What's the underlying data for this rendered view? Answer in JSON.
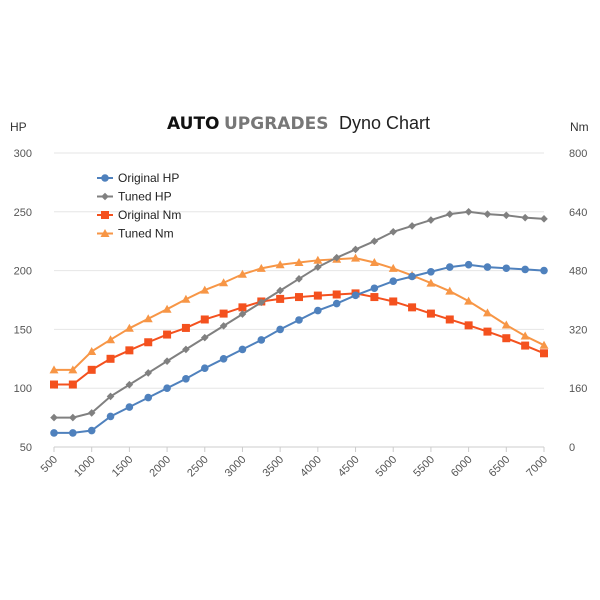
{
  "chart_data": {
    "type": "line",
    "title_brand_primary": "AUTO",
    "title_brand_secondary": "UPGRADES",
    "title": "Dyno Chart",
    "left_axis_label": "HP",
    "right_axis_label": "Nm",
    "x": [
      500,
      750,
      1000,
      1250,
      1500,
      1750,
      2000,
      2250,
      2500,
      2750,
      3000,
      3250,
      3500,
      3750,
      4000,
      4250,
      4500,
      4750,
      5000,
      5250,
      5500,
      5750,
      6000,
      6250,
      6500,
      6750,
      7000
    ],
    "x_tick_labels": [
      "500",
      "1000",
      "1500",
      "2000",
      "2500",
      "3000",
      "3500",
      "4000",
      "4500",
      "5000",
      "5500",
      "6000",
      "6500",
      "7000"
    ],
    "x_ticks": [
      500,
      1000,
      1500,
      2000,
      2500,
      3000,
      3500,
      4000,
      4500,
      5000,
      5500,
      6000,
      6500,
      7000
    ],
    "xlim": [
      500,
      7000
    ],
    "left_ylim": [
      50,
      300
    ],
    "left_ticks": [
      50,
      100,
      150,
      200,
      250,
      300
    ],
    "right_ylim": [
      0,
      800
    ],
    "right_ticks": [
      0,
      160,
      320,
      480,
      640,
      800
    ],
    "grid": true,
    "legend_position": "top-left",
    "series": [
      {
        "name": "Original HP",
        "axis": "left",
        "color": "#4f81bd",
        "marker": "circle",
        "values": [
          62,
          62,
          64,
          76,
          84,
          92,
          100,
          108,
          117,
          125,
          133,
          141,
          150,
          158,
          166,
          172,
          179,
          185,
          191,
          195,
          199,
          203,
          205,
          203,
          202,
          201,
          200
        ]
      },
      {
        "name": "Tuned HP",
        "axis": "left",
        "color": "#808080",
        "marker": "diamond",
        "values": [
          75,
          75,
          79,
          93,
          103,
          113,
          123,
          133,
          143,
          153,
          163,
          173,
          183,
          193,
          203,
          211,
          218,
          225,
          233,
          238,
          243,
          248,
          250,
          248,
          247,
          245,
          244
        ]
      },
      {
        "name": "Original Nm",
        "axis": "right",
        "color": "#f4511e",
        "marker": "square",
        "values": [
          170,
          170,
          210,
          240,
          263,
          285,
          306,
          324,
          347,
          363,
          380,
          396,
          403,
          408,
          412,
          415,
          418,
          408,
          396,
          380,
          363,
          347,
          331,
          314,
          296,
          276,
          255
        ]
      },
      {
        "name": "Tuned Nm",
        "axis": "right",
        "color": "#f79646",
        "marker": "triangle",
        "values": [
          210,
          210,
          260,
          292,
          323,
          349,
          375,
          402,
          427,
          447,
          470,
          486,
          496,
          502,
          508,
          511,
          514,
          502,
          486,
          467,
          446,
          424,
          397,
          365,
          332,
          302,
          277
        ]
      }
    ]
  }
}
